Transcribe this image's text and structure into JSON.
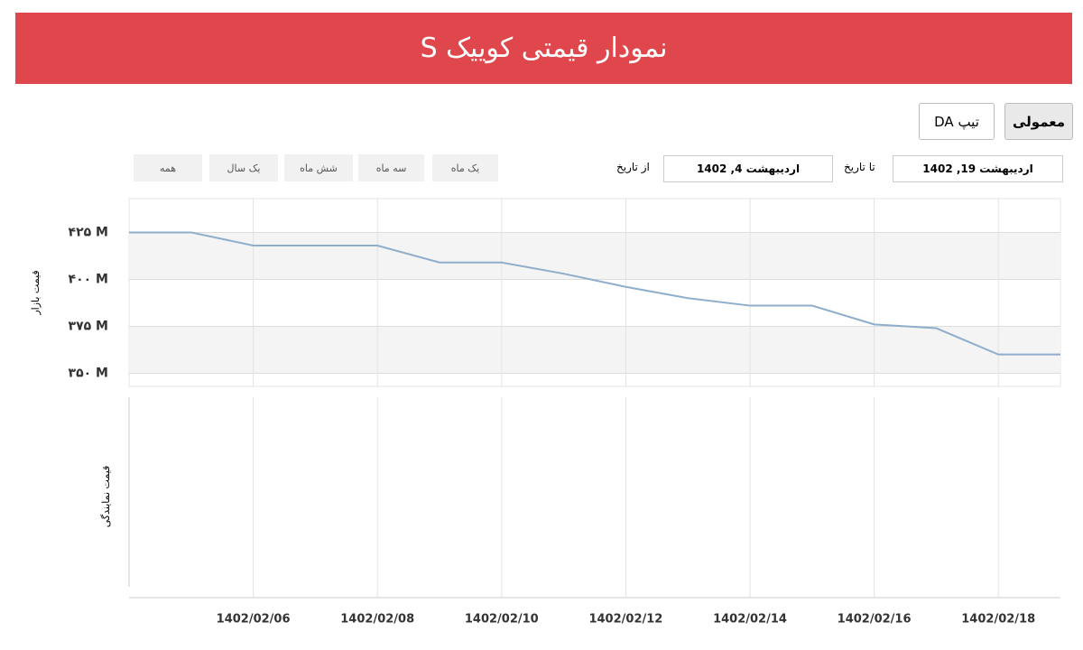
{
  "header": {
    "title": "نمودار قیمتی کوییک S"
  },
  "tabs": [
    "معمولی",
    "تیپ DA"
  ],
  "range_buttons": [
    "یک ماه",
    "سه ماه",
    "شش ماه",
    "یک سال",
    "همه"
  ],
  "date_filter": {
    "from_label": "از تاریخ",
    "from_value": "اردیبهشت 4, 1402",
    "to_label": "تا تاریخ",
    "to_value": "اردیبهشت 19, 1402"
  },
  "chart_data": {
    "type": "line",
    "y_label": "قیمت بازار",
    "lower_y_label": "قیمت نمایندگی",
    "categories": [
      null,
      null,
      "1402/02/06",
      null,
      "1402/02/08",
      null,
      "1402/02/10",
      null,
      "1402/02/12",
      null,
      "1402/02/14",
      null,
      "1402/02/16",
      null,
      "1402/02/18",
      null
    ],
    "values": [
      425,
      425,
      418,
      418,
      418,
      409,
      409,
      403,
      396,
      390,
      386,
      386,
      376,
      374,
      360,
      360
    ],
    "color": "#8eaecb",
    "ylim": [
      343,
      443
    ],
    "yticks": [
      {
        "value": 350,
        "label": "۳۵۰ M"
      },
      {
        "value": 375,
        "label": "۳۷۵ M"
      },
      {
        "value": 400,
        "label": "۴۰۰ M"
      },
      {
        "value": 425,
        "label": "۴۲۵ M"
      }
    ],
    "grid": true
  }
}
